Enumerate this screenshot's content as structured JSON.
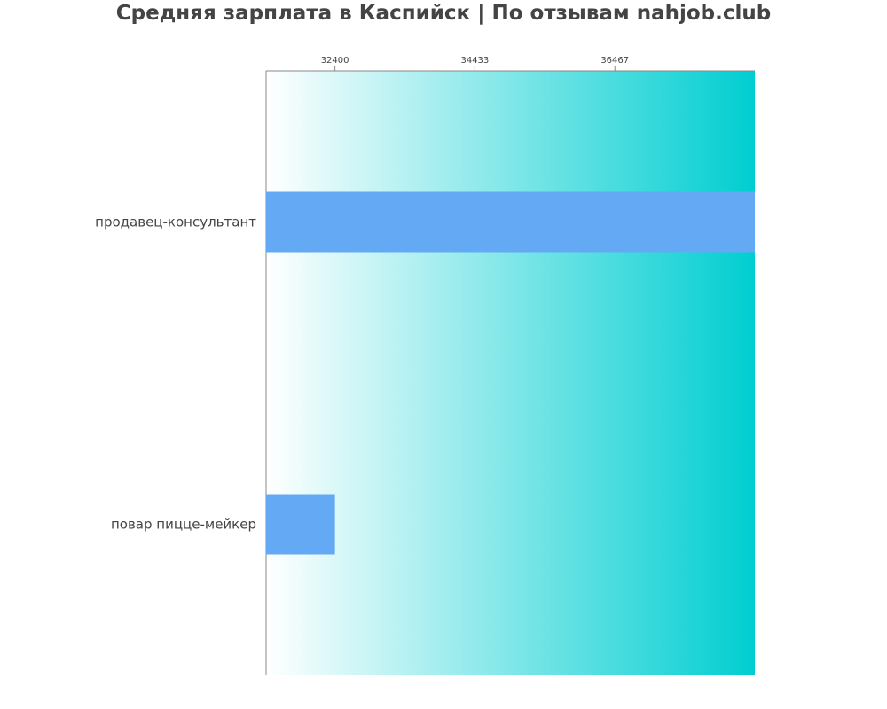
{
  "chart_data": {
    "type": "bar",
    "orientation": "horizontal",
    "title": "Средняя зарплата в Каспийск | По отзывам nahjob.club",
    "categories": [
      "продавец-консультант",
      "повар пицце-мейкер"
    ],
    "values": [
      38500,
      32400
    ],
    "xlim": [
      31400,
      38500
    ],
    "x_ticks": [
      32400,
      34433,
      36467
    ],
    "x_tick_labels": [
      "32400",
      "34433",
      "36467"
    ],
    "xaxis_position": "top",
    "grid": false,
    "colors": {
      "bar": "#63a9f4",
      "background_gradient_start": "#ffffff",
      "background_gradient_end": "#00ced1",
      "text": "#444444"
    }
  }
}
